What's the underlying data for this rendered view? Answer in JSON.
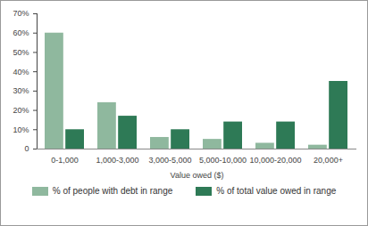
{
  "chart_data": {
    "type": "bar",
    "xlabel": "Value owed ($)",
    "categories": [
      "0-1,000",
      "1,000-3,000",
      "3,000-5,000",
      "5,000-10,000",
      "10,000-20,000",
      "20,000+"
    ],
    "series": [
      {
        "name": "% of people with debt in range",
        "color": "#8fb89e",
        "values": [
          60,
          24,
          6,
          5,
          3,
          2
        ]
      },
      {
        "name": "% of total value owed in range",
        "color": "#2e7a56",
        "values": [
          10,
          17,
          10,
          14,
          14,
          35
        ]
      }
    ],
    "ylim": [
      0,
      70
    ],
    "yticks": [
      0,
      {
        "value": 10,
        "label": "10%"
      },
      {
        "value": 20,
        "label": "20%"
      },
      {
        "value": 30,
        "label": "30%"
      },
      {
        "value": 40,
        "label": "40%"
      },
      {
        "value": 50,
        "label": "50%"
      },
      {
        "value": 60,
        "label": "60%"
      },
      {
        "value": 70,
        "label": "70%"
      }
    ],
    "grid": false,
    "legend": "bottom"
  }
}
